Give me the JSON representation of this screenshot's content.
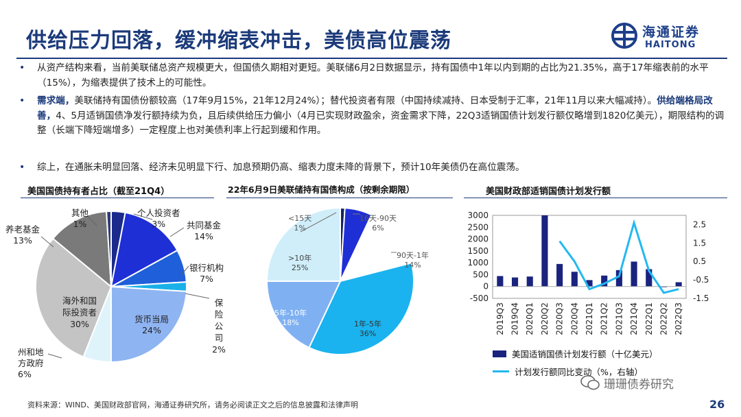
{
  "title": "供给压力回落，缓冲缩表冲击，美债高位震荡",
  "logo": {
    "cn": "海通证券",
    "en": "HAITONG"
  },
  "bullets": [
    {
      "text": "从资产结构来看，当前美联储总资产规模更大，但国债久期相对更短。美联储6月2日数据显示，持有国债中1年以内到期的占比为21.35%，高于17年缩表前的水平（15%），为缩表提供了技术上的可能性。"
    },
    {
      "bold1": "需求端，",
      "text1": "美联储持有国债份额较高（17年9月15%，21年12月24%）；替代投资者有限（中国持续减持、日本受制于汇率，21年11月以来大幅减持）。",
      "bold2": "供给端格局改善，",
      "text2": "4、5月适销国债净发行额持续为负，且后续供给压力偏小（4月已实现财政盈余，资金需求下降，22Q3适销国债计划发行额仅略增到1820亿美元），期限结构的调整（长端下降短端增多）一定程度上也对美债利率上行起到缓和作用。"
    },
    {
      "text": "综上，在通胀未明显回落、经济未见明显下行、加息预期仍高、缩表力度未降的背景下，预计10年美债仍在高位震荡。"
    }
  ],
  "chart_titles": {
    "holders": "美国国债持有者占比（截至21Q4）",
    "fed": "22年6月9日美联储持有国债构成（按剩余期限）",
    "issuance": "美国财政部适销国债计划发行额"
  },
  "chart_data": [
    {
      "type": "pie",
      "title": "美国国债持有者占比（截至21Q4）",
      "slices": [
        {
          "label": "个人投资者",
          "value": 3,
          "display": "3%",
          "color": "#1a2b8c"
        },
        {
          "label": "共同基金",
          "value": 14,
          "display": "14%",
          "color": "#1f2fd6"
        },
        {
          "label": "银行机构",
          "value": 7,
          "display": "7%",
          "color": "#1f5fd9"
        },
        {
          "label": "保险公司",
          "value": 2,
          "display": "2%",
          "color": "#1ab0e8"
        },
        {
          "label": "货币当局",
          "value": 24,
          "display": "24%",
          "color": "#8fb4f2"
        },
        {
          "label": "州和地方政府",
          "value": 6,
          "display": "6%",
          "color": "#dff3fb"
        },
        {
          "label": "海外和国际投资者",
          "value": 30,
          "display": "30%",
          "color": "#c4c4c4"
        },
        {
          "label": "养老基金",
          "value": 13,
          "display": "13%",
          "color": "#7a7a7a"
        },
        {
          "label": "其他",
          "value": 1,
          "display": "1%",
          "color": "#2c3a78"
        }
      ]
    },
    {
      "type": "pie",
      "title": "22年6月9日美联储持有国债构成（按剩余期限）",
      "slices": [
        {
          "label": "<15天",
          "value": 1,
          "display": "1%",
          "color": "#14235e"
        },
        {
          "label": "16天-90天",
          "value": 6,
          "display": "6%",
          "color": "#1f2fd6"
        },
        {
          "label": "90天-1年",
          "value": 14,
          "display": "14%",
          "color": "#ffffff"
        },
        {
          "label": "1年-5年",
          "value": 36,
          "display": "36%",
          "color": "#1ab3ef"
        },
        {
          "label": "5年-10年",
          "value": 18,
          "display": "18%",
          "color": "#7fb1f2"
        },
        {
          "label": ">10年",
          "value": 25,
          "display": "25%",
          "color": "#cfeefa"
        }
      ]
    },
    {
      "type": "bar",
      "title": "美国财政部适销国债计划发行额",
      "categories": [
        "2019Q3",
        "2019Q4",
        "2020Q1",
        "2020Q2",
        "2020Q3",
        "2020Q4",
        "2021Q1",
        "2021Q2",
        "2021Q3",
        "2021Q4",
        "2022Q1",
        "2022Q2",
        "2022Q3"
      ],
      "series": [
        {
          "name": "美国适销国债计划发行额（十亿美元）",
          "type": "bar",
          "axis": "left",
          "color": "#1a237e",
          "values": [
            440,
            380,
            420,
            3000,
            950,
            620,
            270,
            460,
            690,
            1050,
            730,
            -30,
            180
          ]
        },
        {
          "name": "计划发行额同比变动（%，右轴）",
          "type": "line",
          "axis": "right",
          "color": "#22b8f0",
          "values": [
            null,
            null,
            null,
            null,
            1.6,
            0.5,
            -1.0,
            -0.7,
            -0.3,
            2.6,
            0.0,
            -1.2,
            -1.0
          ]
        }
      ],
      "y_left": {
        "min": -500,
        "max": 3000,
        "ticks": [
          -500,
          0,
          500,
          1000,
          1500,
          2000,
          2500,
          3000
        ]
      },
      "y_right": {
        "min": -1.5,
        "max": 3.0,
        "ticks": [
          "-1.5",
          "-0.5",
          "0.5",
          "1.5",
          "2.5"
        ]
      },
      "legend_position": "bottom"
    }
  ],
  "legend": {
    "bar": "美国适销国债计划发行额（十亿美元）",
    "line": "计划发行额同比变动（%，右轴）"
  },
  "watermark": "珊珊债券研究",
  "footer": "资料来源：WIND、美国财政部官网，海通证券研究所，请务必阅读正文之后的信息披露和法律声明",
  "page_number": "26"
}
